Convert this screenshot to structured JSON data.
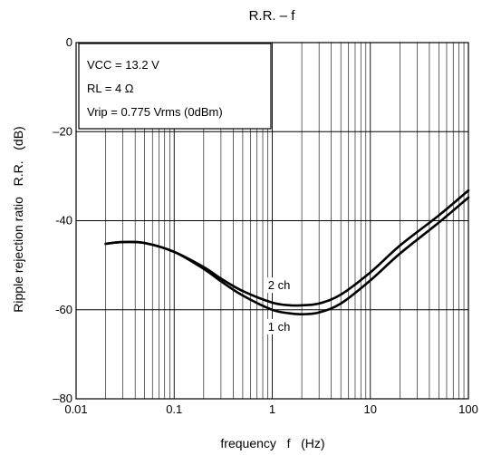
{
  "chart_data": {
    "type": "line",
    "title": "R.R. – f",
    "xlabel": "frequency   f   (Hz)",
    "ylabel": "Ripple rejection ratio   R.R.   (dB)",
    "xscale": "log",
    "xlim": [
      0.01,
      100
    ],
    "ylim": [
      -80,
      0
    ],
    "xticks": [
      {
        "value": 0.01,
        "label": "0.01"
      },
      {
        "value": 0.1,
        "label": "0.1"
      },
      {
        "value": 1,
        "label": "1"
      },
      {
        "value": 10,
        "label": "10"
      },
      {
        "value": 100,
        "label": "100"
      }
    ],
    "yticks": [
      {
        "value": 0,
        "label": "0"
      },
      {
        "value": -20,
        "label": "–20"
      },
      {
        "value": -40,
        "label": "-40"
      },
      {
        "value": -60,
        "label": "-60"
      },
      {
        "value": -80,
        "label": "–80"
      }
    ],
    "grid": true,
    "conditions": {
      "vcc_label": "VCC = 13.2 V",
      "rl_label": "RL = 4 Ω",
      "vrip_label": "Vrip = 0.775 Vrms (0dBm)"
    },
    "series": [
      {
        "name": "2 ch",
        "x": [
          0.02,
          0.03,
          0.05,
          0.1,
          0.2,
          0.3,
          0.5,
          1,
          1.5,
          2,
          3,
          5,
          10,
          20,
          50,
          100
        ],
        "y": [
          -45.2,
          -44.8,
          -45.0,
          -47.0,
          -50.4,
          -53.0,
          -55.8,
          -58.4,
          -59.0,
          -59.0,
          -58.6,
          -56.6,
          -51.6,
          -45.6,
          -38.8,
          -33.2
        ]
      },
      {
        "name": "1 ch",
        "x": [
          0.02,
          0.03,
          0.05,
          0.1,
          0.2,
          0.3,
          0.5,
          1,
          1.5,
          2,
          3,
          5,
          10,
          20,
          50,
          100
        ],
        "y": [
          -45.2,
          -44.8,
          -45.0,
          -47.0,
          -50.8,
          -53.6,
          -56.8,
          -60.0,
          -60.8,
          -61.0,
          -60.6,
          -58.6,
          -53.4,
          -47.4,
          -40.4,
          -34.8
        ]
      }
    ]
  }
}
